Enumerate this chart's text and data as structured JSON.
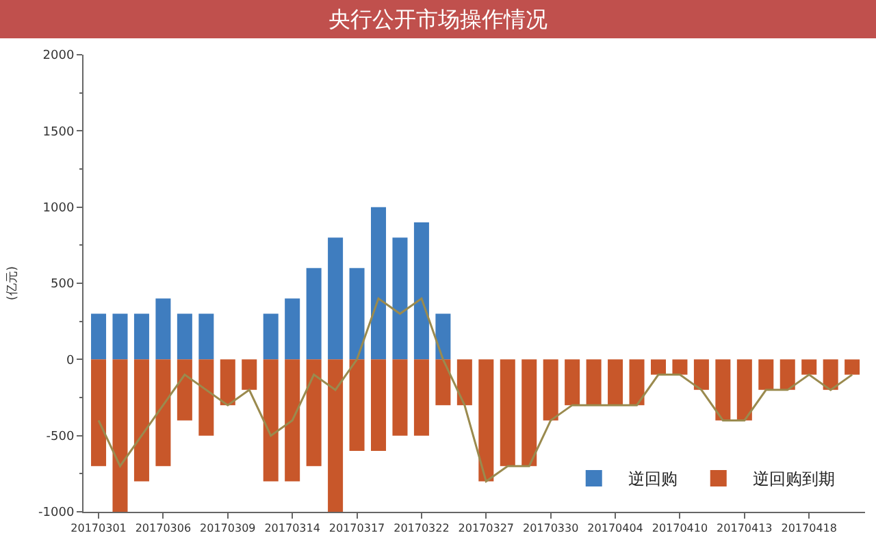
{
  "chart_data": {
    "type": "bar",
    "title": "央行公开市场操作情况",
    "ylabel": "(亿元)",
    "categories": [
      "20170301",
      null,
      null,
      "20170306",
      null,
      null,
      "20170309",
      null,
      null,
      "20170314",
      null,
      null,
      "20170317",
      null,
      null,
      "20170322",
      null,
      null,
      "20170327",
      null,
      null,
      "20170330",
      null,
      null,
      "20170404",
      null,
      null,
      "20170410",
      null,
      null,
      "20170413",
      null,
      null,
      "20170418",
      null,
      null
    ],
    "series": [
      {
        "name": "逆回购",
        "color": "#3f7dbf",
        "values": [
          300,
          300,
          300,
          400,
          300,
          300,
          0,
          0,
          300,
          400,
          600,
          800,
          600,
          1000,
          800,
          900,
          300,
          0,
          0,
          0,
          0,
          0,
          0,
          0,
          0,
          0,
          0,
          0,
          0,
          0,
          0,
          0,
          0,
          0,
          0,
          0
        ]
      },
      {
        "name": "逆回购到期",
        "color": "#c8572a",
        "values": [
          -700,
          -1000,
          -800,
          -700,
          -400,
          -500,
          -300,
          -200,
          -800,
          -800,
          -700,
          -1000,
          -600,
          -600,
          -500,
          -500,
          -300,
          -300,
          -800,
          -700,
          -700,
          -400,
          -300,
          -300,
          -300,
          -300,
          -100,
          -100,
          -200,
          -400,
          -400,
          -200,
          -200,
          -100,
          -200,
          -100
        ]
      },
      {
        "type": "line",
        "color": "#9a8a4e",
        "values": [
          -400,
          -700,
          -500,
          -300,
          -100,
          -200,
          -300,
          -200,
          -500,
          -400,
          -100,
          -200,
          0,
          400,
          300,
          400,
          0,
          -300,
          -800,
          -700,
          -700,
          -400,
          -300,
          -300,
          -300,
          -300,
          -100,
          -100,
          -200,
          -400,
          -400,
          -200,
          -200,
          -100,
          -200,
          -100
        ]
      }
    ],
    "ylim": [
      -1000,
      2000
    ],
    "yticks": [
      -1000,
      -500,
      0,
      500,
      1000,
      1500,
      2000
    ],
    "legend": "bottom right",
    "marker": "none",
    "line_style": "solid"
  }
}
